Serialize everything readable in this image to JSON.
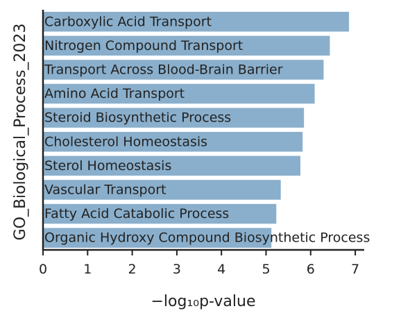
{
  "chart_data": {
    "type": "bar",
    "orientation": "horizontal",
    "categories": [
      "Carboxylic Acid Transport",
      "Nitrogen Compound Transport",
      "Transport Across Blood-Brain Barrier",
      "Amino Acid Transport",
      "Steroid Biosynthetic Process",
      "Cholesterol Homeostasis",
      "Sterol Homeostasis",
      "Vascular Transport",
      "Fatty Acid Catabolic Process",
      "Organic Hydroxy Compound Biosynthetic Process"
    ],
    "values": [
      6.86,
      6.43,
      6.29,
      6.09,
      5.85,
      5.82,
      5.77,
      5.33,
      5.23,
      5.12
    ],
    "xlabel": "−log₁₀p-value",
    "ylabel": "GO_Biological_Process_2023",
    "xlim": [
      0,
      7.2
    ],
    "xticks": [
      "0",
      "1",
      "2",
      "3",
      "4",
      "5",
      "6",
      "7"
    ],
    "grid": false,
    "legend": "none",
    "bar_color": "#8aafcc",
    "axis_color": "#222222"
  }
}
